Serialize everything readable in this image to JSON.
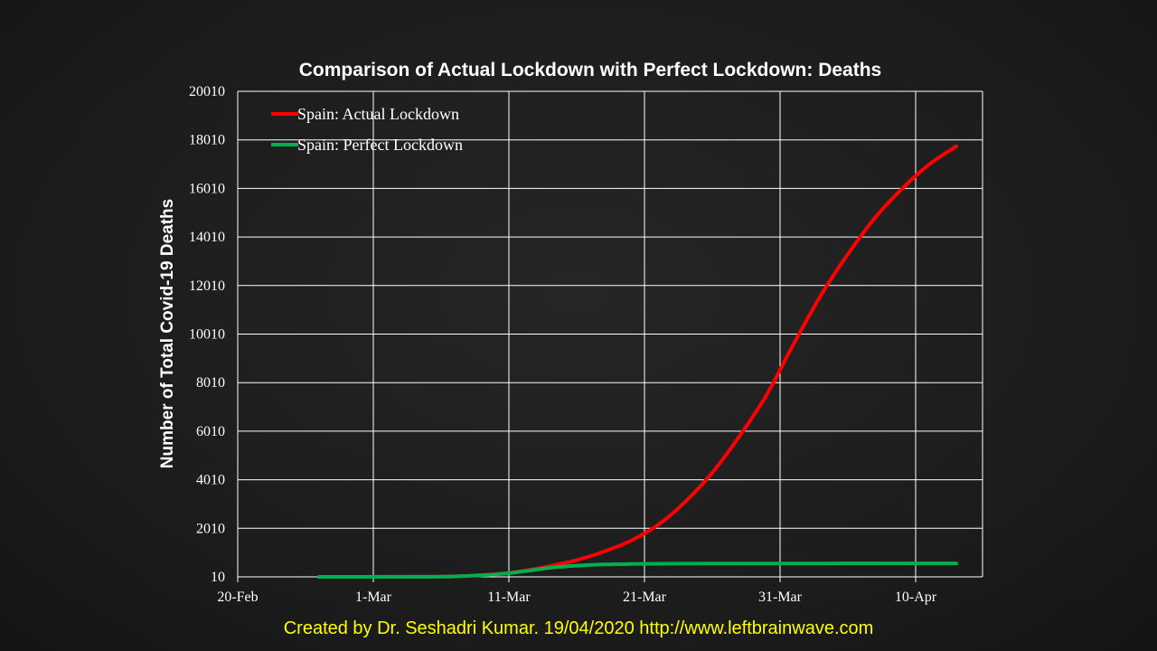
{
  "chart_data": {
    "type": "line",
    "title": "Comparison of Actual Lockdown with Perfect Lockdown: Deaths",
    "xlabel": "",
    "ylabel": "Number of Total Covid-19 Deaths",
    "x_tick_labels": [
      "20-Feb",
      "1-Mar",
      "11-Mar",
      "21-Mar",
      "31-Mar",
      "10-Apr"
    ],
    "y_tick_labels": [
      "10",
      "2010",
      "4010",
      "6010",
      "8010",
      "10010",
      "12010",
      "14010",
      "16010",
      "18010",
      "20010"
    ],
    "xlim_days_from_20Feb": [
      0,
      55
    ],
    "ylim": [
      10,
      20010
    ],
    "grid": true,
    "legend_position": "top-left",
    "series": [
      {
        "name": "Spain: Actual Lockdown",
        "color": "#ff0000",
        "x": [
          "26-Feb",
          "1-Mar",
          "4-Mar",
          "7-Mar",
          "10-Mar",
          "12-Mar",
          "14-Mar",
          "16-Mar",
          "18-Mar",
          "20-Mar",
          "22-Mar",
          "24-Mar",
          "26-Mar",
          "28-Mar",
          "30-Mar",
          "1-Apr",
          "3-Apr",
          "5-Apr",
          "7-Apr",
          "9-Apr",
          "11-Apr",
          "13-Apr"
        ],
        "values": [
          10,
          10,
          15,
          30,
          120,
          250,
          450,
          700,
          1050,
          1500,
          2150,
          3100,
          4300,
          5800,
          7500,
          9600,
          11600,
          13300,
          14800,
          16000,
          17000,
          17750
        ]
      },
      {
        "name": "Spain: Perfect Lockdown",
        "color": "#00b050",
        "x": [
          "26-Feb",
          "1-Mar",
          "4-Mar",
          "7-Mar",
          "10-Mar",
          "12-Mar",
          "14-Mar",
          "16-Mar",
          "18-Mar",
          "20-Mar",
          "22-Mar",
          "24-Mar",
          "26-Mar",
          "28-Mar",
          "30-Mar",
          "1-Apr",
          "3-Apr",
          "5-Apr",
          "7-Apr",
          "9-Apr",
          "11-Apr",
          "13-Apr"
        ],
        "values": [
          10,
          10,
          15,
          30,
          110,
          230,
          380,
          470,
          520,
          540,
          550,
          555,
          558,
          560,
          560,
          560,
          561,
          562,
          563,
          563,
          564,
          565
        ]
      }
    ]
  },
  "credit": "Created by Dr. Seshadri Kumar. 19/04/2020 http://www.leftbrainwave.com"
}
